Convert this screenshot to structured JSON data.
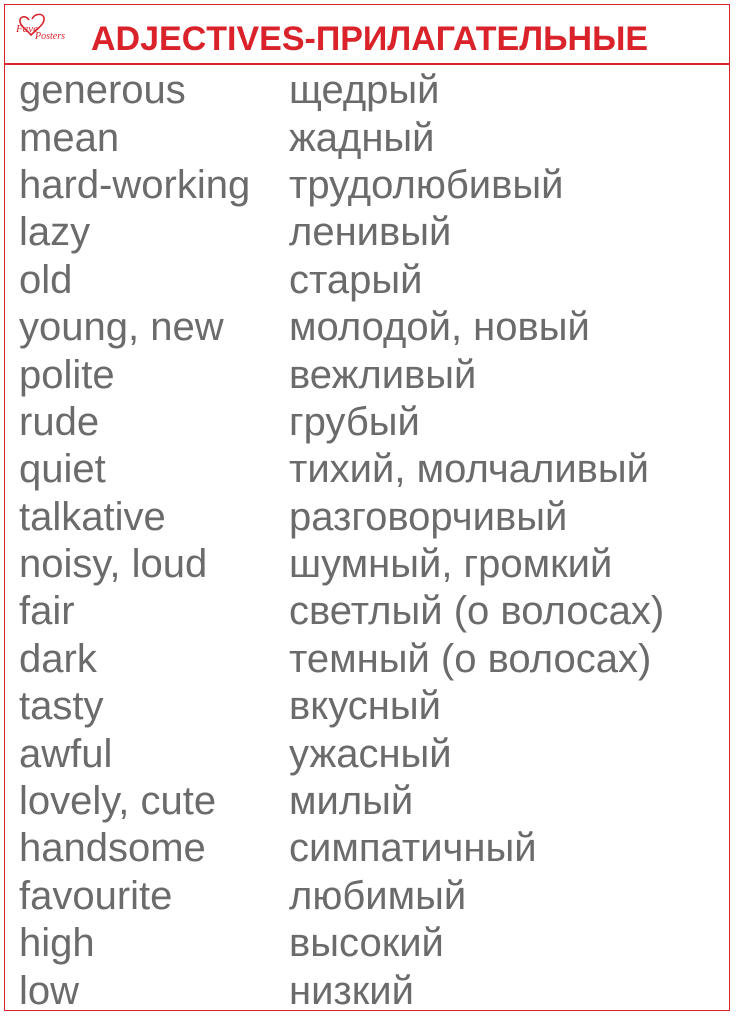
{
  "header": {
    "title": "ADJECTIVES-ПРИЛАГАТЕЛЬНЫЕ",
    "logo_text_top": "Fave",
    "logo_text_bottom": "Posters",
    "accent_color": "#d9222a",
    "logo_icon": "heart-icon"
  },
  "text_color": "#6b6b6b",
  "vocabulary": [
    {
      "en": "generous",
      "ru": "щедрый"
    },
    {
      "en": "mean",
      "ru": "жадный"
    },
    {
      "en": "hard-working",
      "ru": "трудолюбивый"
    },
    {
      "en": "lazy",
      "ru": "ленивый"
    },
    {
      "en": "old",
      "ru": "старый"
    },
    {
      "en": "young, new",
      "ru": "молодой, новый"
    },
    {
      "en": "polite",
      "ru": "вежливый"
    },
    {
      "en": "rude",
      "ru": "грубый"
    },
    {
      "en": "quiet",
      "ru": "тихий, молчаливый"
    },
    {
      "en": "talkative",
      "ru": "разговорчивый"
    },
    {
      "en": "noisy, loud",
      "ru": "шумный, громкий"
    },
    {
      "en": "fair",
      "ru": "светлый (о волосах)"
    },
    {
      "en": "dark",
      "ru": "темный (о волосах)"
    },
    {
      "en": "tasty",
      "ru": "вкусный"
    },
    {
      "en": "awful",
      "ru": "ужасный"
    },
    {
      "en": "lovely, cute",
      "ru": "милый"
    },
    {
      "en": "handsome",
      "ru": "симпатичный"
    },
    {
      "en": "favourite",
      "ru": "любимый"
    },
    {
      "en": "high",
      "ru": "высокий"
    },
    {
      "en": "low",
      "ru": "низкий"
    }
  ]
}
